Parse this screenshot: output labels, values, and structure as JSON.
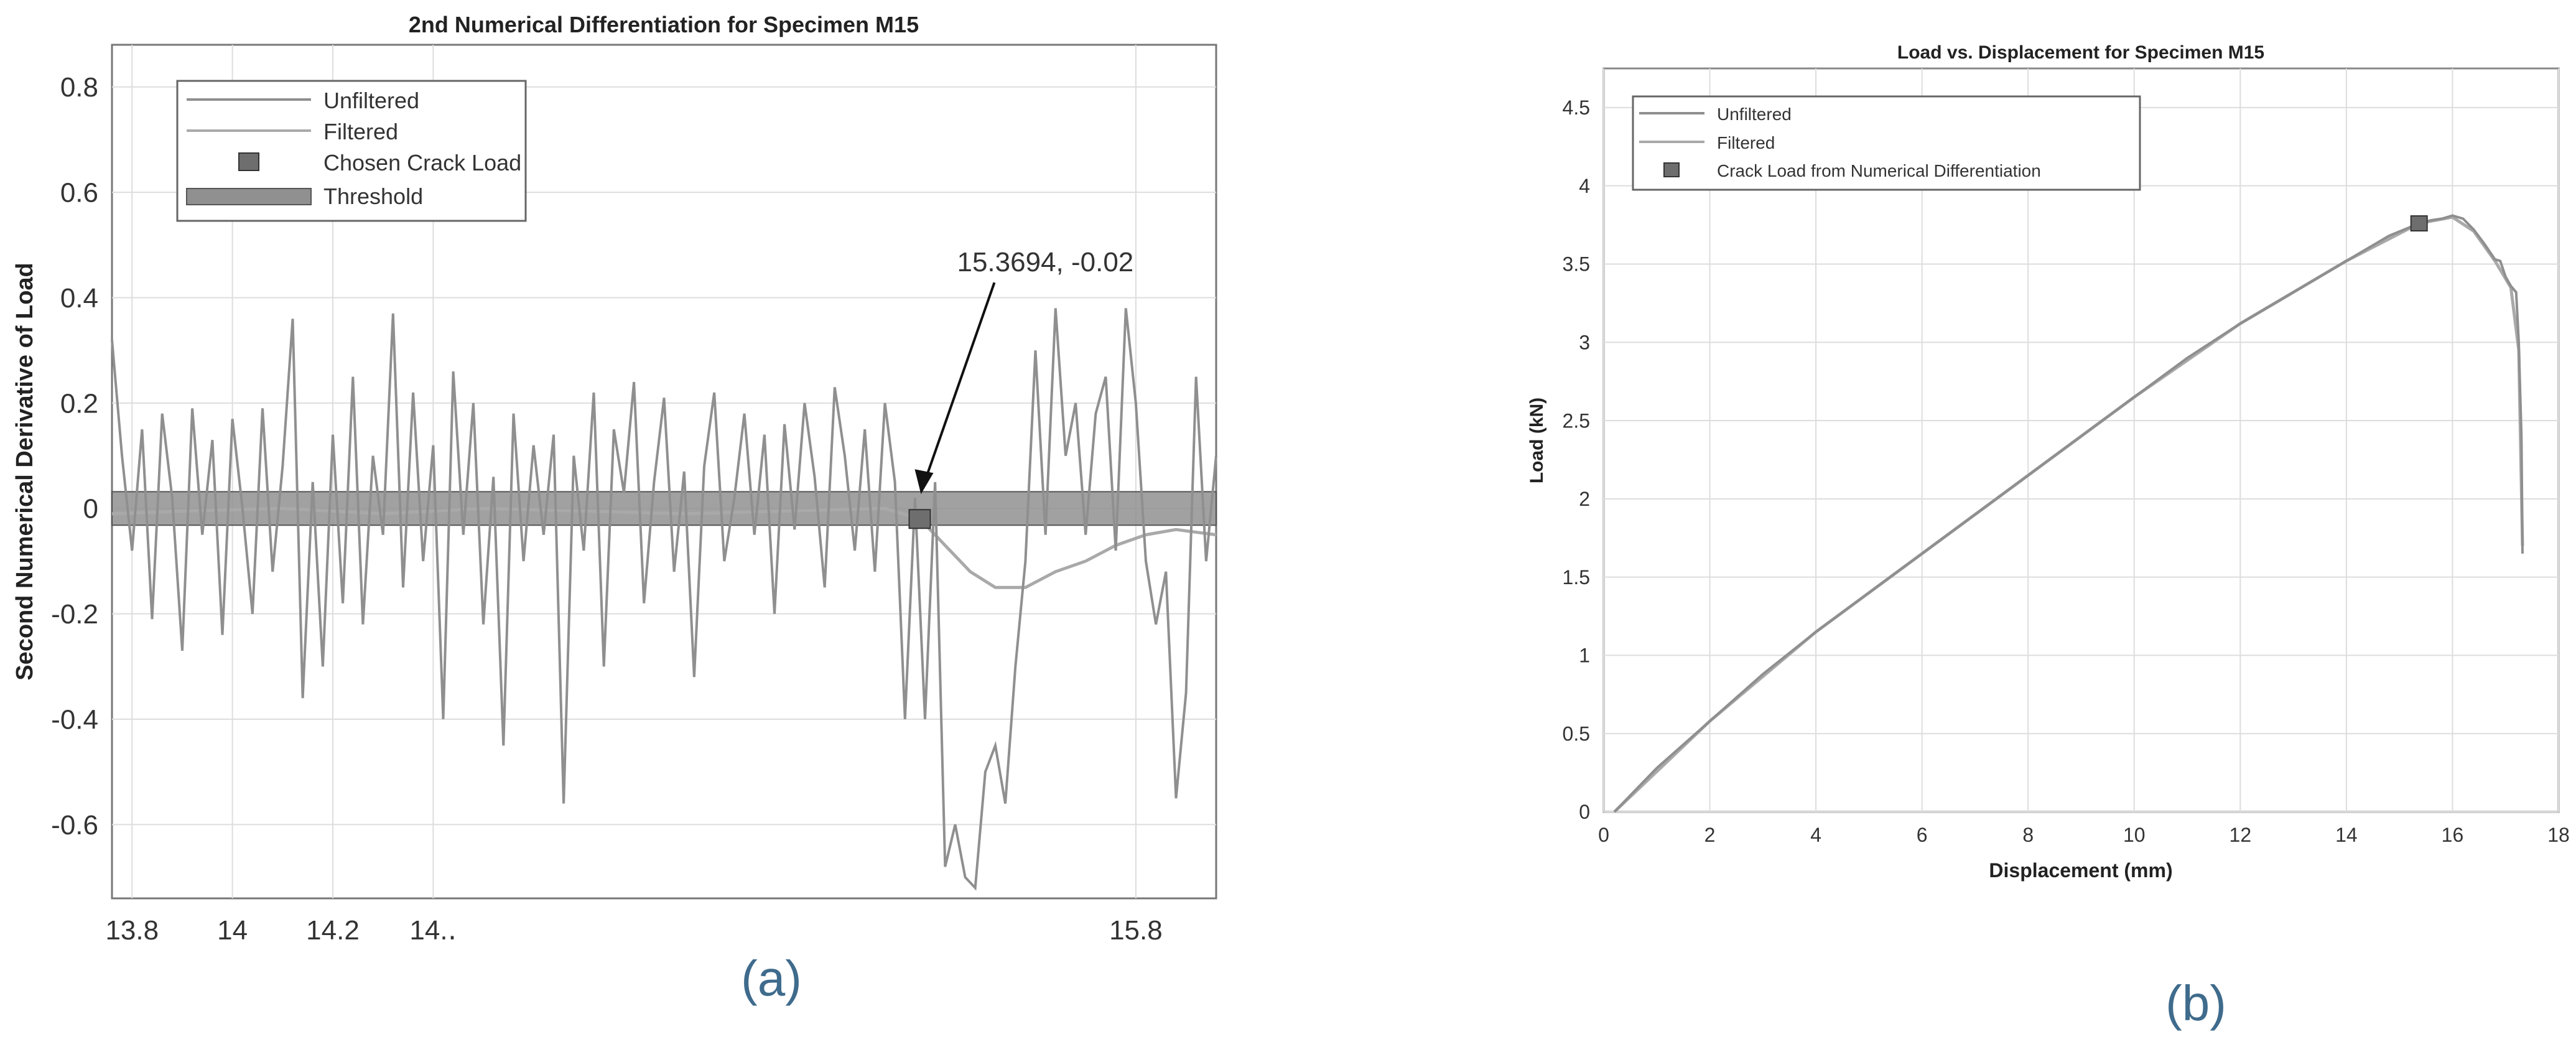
{
  "chart_data": [
    {
      "id": "a",
      "type": "line",
      "title": "2nd Numerical Differentiation for Specimen M15",
      "xlabel": "",
      "ylabel": "Second Numerical Derivative of Load",
      "caption": "(a)",
      "xlim": [
        13.76,
        15.96
      ],
      "ylim": [
        -0.74,
        0.88
      ],
      "xticks": [
        13.8,
        14,
        14.2,
        14.4,
        15.8
      ],
      "xtick_labels": [
        "13.8",
        "14",
        "14.2",
        "14.․",
        "15.8"
      ],
      "yticks": [
        0.8,
        0.6,
        0.4,
        0.2,
        0,
        -0.2,
        -0.4,
        -0.6
      ],
      "ytick_labels": [
        "0.8",
        "0.6",
        "0.4",
        "0.2",
        "0",
        "-0.2",
        "-0.4",
        "-0.6"
      ],
      "grid": true,
      "legend_position": "top-left",
      "legend": [
        "Unfiltered",
        "Filtered",
        "Chosen Crack Load",
        "Threshold"
      ],
      "threshold_band": [
        -0.02,
        0.02
      ],
      "crack_point": {
        "x": 15.3694,
        "y": -0.02
      },
      "annotation": {
        "text": "15.3694, -0.02",
        "x": 15.3694,
        "y": -0.02
      },
      "series": [
        {
          "name": "Unfiltered",
          "x": [
            13.76,
            13.78,
            13.8,
            13.82,
            13.84,
            13.86,
            13.88,
            13.9,
            13.92,
            13.94,
            13.96,
            13.98,
            14.0,
            14.02,
            14.04,
            14.06,
            14.08,
            14.1,
            14.12,
            14.14,
            14.16,
            14.18,
            14.2,
            14.22,
            14.24,
            14.26,
            14.28,
            14.3,
            14.32,
            14.34,
            14.36,
            14.38,
            14.4,
            14.42,
            14.44,
            14.46,
            14.48,
            14.5,
            14.52,
            14.54,
            14.56,
            14.58,
            14.6,
            14.62,
            14.64,
            14.66,
            14.68,
            14.7,
            14.72,
            14.74,
            14.76,
            14.78,
            14.8,
            14.82,
            14.84,
            14.86,
            14.88,
            14.9,
            14.92,
            14.94,
            14.96,
            14.98,
            15.0,
            15.02,
            15.04,
            15.06,
            15.08,
            15.1,
            15.12,
            15.14,
            15.16,
            15.18,
            15.2,
            15.22,
            15.24,
            15.26,
            15.28,
            15.3,
            15.32,
            15.34,
            15.36,
            15.38,
            15.4,
            15.42,
            15.44,
            15.46,
            15.48,
            15.5,
            15.52,
            15.54,
            15.56,
            15.58,
            15.6,
            15.62,
            15.64,
            15.66,
            15.68,
            15.7,
            15.72,
            15.74,
            15.76,
            15.78,
            15.8,
            15.82,
            15.84,
            15.86,
            15.88,
            15.9,
            15.92,
            15.94,
            15.96
          ],
          "y": [
            0.32,
            0.1,
            -0.08,
            0.15,
            -0.21,
            0.18,
            0.02,
            -0.27,
            0.19,
            -0.05,
            0.13,
            -0.24,
            0.17,
            0.0,
            -0.2,
            0.19,
            -0.12,
            0.08,
            0.36,
            -0.36,
            0.05,
            -0.3,
            0.14,
            -0.18,
            0.25,
            -0.22,
            0.1,
            -0.05,
            0.37,
            -0.15,
            0.22,
            -0.1,
            0.12,
            -0.4,
            0.26,
            -0.05,
            0.2,
            -0.22,
            0.06,
            -0.45,
            0.18,
            -0.1,
            0.12,
            -0.05,
            0.14,
            -0.56,
            0.1,
            -0.08,
            0.22,
            -0.3,
            0.15,
            0.03,
            0.24,
            -0.18,
            0.05,
            0.21,
            -0.12,
            0.07,
            -0.32,
            0.08,
            0.22,
            -0.1,
            0.02,
            0.18,
            -0.05,
            0.14,
            -0.2,
            0.16,
            -0.04,
            0.2,
            0.06,
            -0.15,
            0.23,
            0.1,
            -0.08,
            0.15,
            -0.12,
            0.2,
            0.05,
            -0.4,
            0.02,
            -0.4,
            0.05,
            -0.68,
            -0.6,
            -0.7,
            -0.72,
            -0.5,
            -0.45,
            -0.56,
            -0.3,
            -0.1,
            0.3,
            -0.05,
            0.38,
            0.1,
            0.2,
            -0.05,
            0.18,
            0.25,
            -0.08,
            0.38,
            0.2,
            -0.1,
            -0.22,
            -0.12,
            -0.55,
            -0.35,
            0.25,
            -0.1,
            0.1
          ],
          "color": "#8f8f8f"
        },
        {
          "name": "Filtered",
          "x": [
            13.76,
            13.9,
            14.1,
            14.3,
            14.5,
            14.7,
            14.9,
            15.1,
            15.3,
            15.37,
            15.42,
            15.47,
            15.52,
            15.58,
            15.64,
            15.7,
            15.76,
            15.82,
            15.88,
            15.96
          ],
          "y": [
            -0.01,
            -0.005,
            0.0,
            -0.01,
            0.0,
            -0.005,
            -0.01,
            -0.005,
            0.0,
            -0.02,
            -0.07,
            -0.12,
            -0.15,
            -0.15,
            -0.12,
            -0.1,
            -0.07,
            -0.05,
            -0.04,
            -0.05
          ],
          "color": "#a9a9a9"
        }
      ]
    },
    {
      "id": "b",
      "type": "line",
      "title": "Load vs. Displacement for Specimen M15",
      "xlabel": "Displacement (mm)",
      "ylabel": "Load (kN)",
      "caption": "(b)",
      "xlim": [
        0,
        18
      ],
      "ylim": [
        0,
        4.75
      ],
      "xticks": [
        0,
        2,
        4,
        6,
        8,
        10,
        12,
        14,
        16,
        18
      ],
      "xtick_labels": [
        "0",
        "2",
        "4",
        "6",
        "8",
        "10",
        "12",
        "14",
        "16",
        "18"
      ],
      "yticks": [
        0,
        0.5,
        1,
        1.5,
        2,
        2.5,
        3,
        3.5,
        4,
        4.5
      ],
      "ytick_labels": [
        "0",
        "0.5",
        "1",
        "1.5",
        "2",
        "2.5",
        "3",
        "3.5",
        "4",
        "4.5"
      ],
      "grid": true,
      "legend_position": "top-left",
      "legend": [
        "Unfiltered",
        "Filtered",
        "Crack Load from Numerical Differentiation"
      ],
      "crack_point": {
        "x": 15.37,
        "y": 3.76
      },
      "series": [
        {
          "name": "Unfiltered",
          "x": [
            0.2,
            1.0,
            2.0,
            3.0,
            4.0,
            5.0,
            6.0,
            7.0,
            8.0,
            9.0,
            10.0,
            11.0,
            12.0,
            13.0,
            14.0,
            14.8,
            15.37,
            15.6,
            15.8,
            16.0,
            16.2,
            16.4,
            16.6,
            16.8,
            16.9,
            17.0,
            17.1,
            17.2,
            17.25,
            17.3,
            17.32
          ],
          "y": [
            0.0,
            0.28,
            0.58,
            0.88,
            1.15,
            1.4,
            1.65,
            1.9,
            2.15,
            2.4,
            2.65,
            2.9,
            3.12,
            3.32,
            3.52,
            3.68,
            3.76,
            3.78,
            3.79,
            3.81,
            3.79,
            3.72,
            3.63,
            3.53,
            3.52,
            3.42,
            3.36,
            3.32,
            3.0,
            2.4,
            1.65
          ],
          "color": "#8f8f8f"
        },
        {
          "name": "Filtered",
          "x": [
            0.2,
            2.0,
            4.0,
            6.0,
            8.0,
            10.0,
            12.0,
            14.0,
            15.37,
            16.0,
            16.4,
            16.8,
            17.1,
            17.25,
            17.32
          ],
          "y": [
            0.0,
            0.58,
            1.15,
            1.65,
            2.15,
            2.65,
            3.12,
            3.52,
            3.76,
            3.8,
            3.71,
            3.52,
            3.35,
            2.95,
            1.7
          ],
          "color": "#a9a9a9"
        }
      ]
    }
  ]
}
